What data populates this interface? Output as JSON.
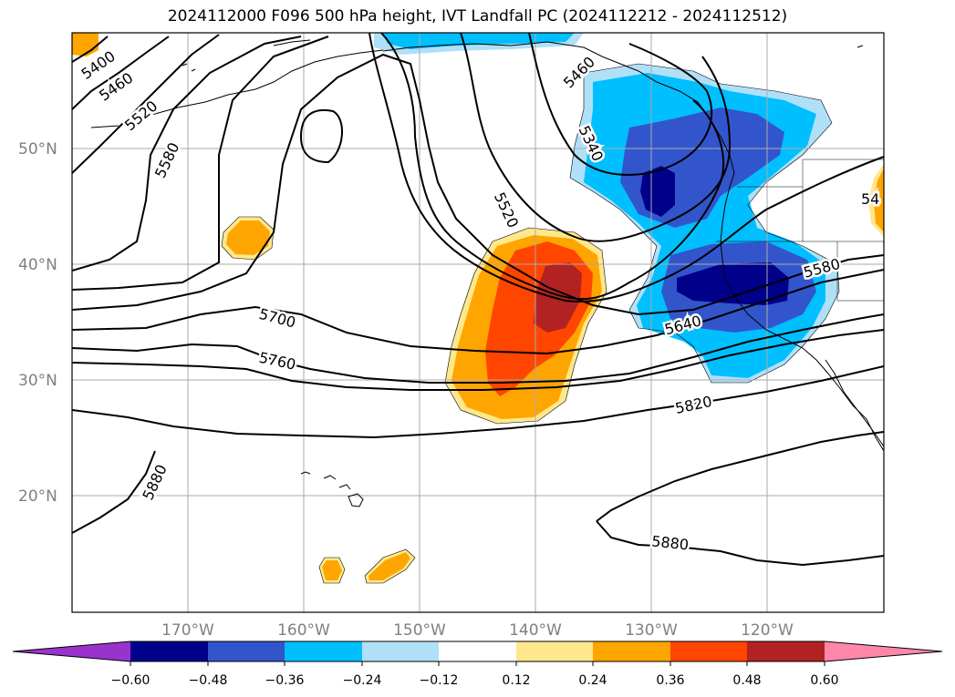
{
  "title": "2024112000 F096 500 hPa height, IVT Landfall PC (2024112212 - 2024112512)",
  "colors": {
    "c_m060_lt": "#9933cc",
    "c_m060_m048": "#00008b",
    "c_m048_m036": "#3355cc",
    "c_m036_m024": "#00bfff",
    "c_m024_m012": "#b0e0f8",
    "c_m012_012": "#ffffff",
    "c_012_024": "#ffe88c",
    "c_024_036": "#ffa500",
    "c_036_048": "#ff4500",
    "c_048_060": "#b22222",
    "c_060_gt": "#ff88aa",
    "contour": "#000000",
    "grid": "#aaaaaa"
  },
  "lat_labels": [
    "50°N",
    "40°N",
    "30°N",
    "20°N"
  ],
  "lon_labels": [
    "170°W",
    "160°W",
    "150°W",
    "140°W",
    "130°W",
    "120°W"
  ],
  "contour_labels": {
    "c5400": "5400",
    "c5460a": "5460",
    "c5460b": "5460",
    "c5520a": "5520",
    "c5520b": "5520",
    "c5580a": "5580",
    "c5580b": "5580",
    "c5340": "5340",
    "c5640": "5640",
    "c5700": "5700",
    "c5760": "5760",
    "c5820": "5820",
    "c5880a": "5880",
    "c5880b": "5880",
    "c54": "54"
  },
  "colorbar": {
    "ticks": [
      "−0.60",
      "−0.48",
      "−0.36",
      "−0.24",
      "−0.12",
      "0.12",
      "0.24",
      "0.36",
      "0.48",
      "0.60"
    ]
  }
}
